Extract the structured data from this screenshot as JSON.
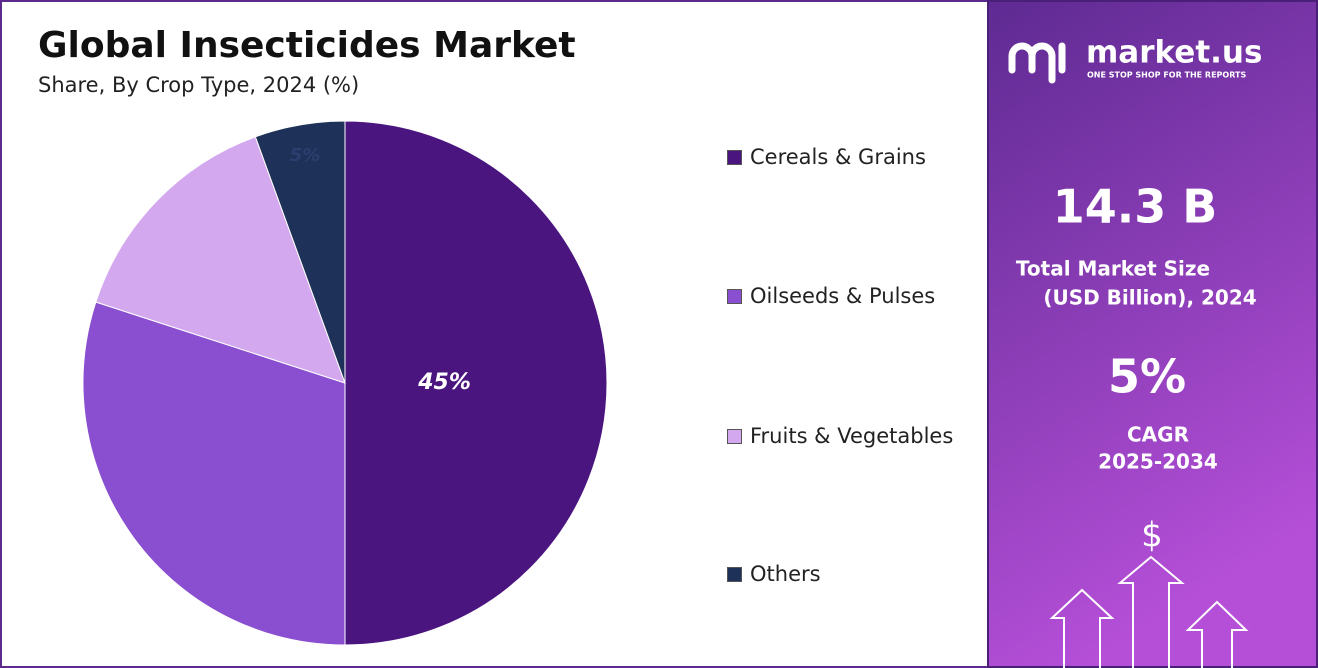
{
  "chart_data": {
    "type": "pie",
    "title": "Global Insecticides Market",
    "subtitle": "Share, By Crop Type, 2024 (%)",
    "categories": [
      "Cereals & Grains",
      "Oilseeds & Pulses",
      "Fruits & Vegetables",
      "Others"
    ],
    "values": [
      45,
      27,
      13,
      5
    ],
    "value_labels": [
      "45%",
      null,
      null,
      "5%"
    ],
    "colors": [
      "#4b1580",
      "#8a4fd0",
      "#d4a8ee",
      "#1e3159"
    ]
  },
  "panel": {
    "brand": "market.us",
    "tagline": "ONE STOP SHOP FOR THE REPORTS",
    "market_size": "14.3 B",
    "market_size_label_1": "Total Market Size",
    "market_size_label_2": "(USD Billion), 2024",
    "cagr": "5%",
    "cagr_label_1": "CAGR",
    "cagr_label_2": "2025-2034",
    "icon": "$"
  }
}
